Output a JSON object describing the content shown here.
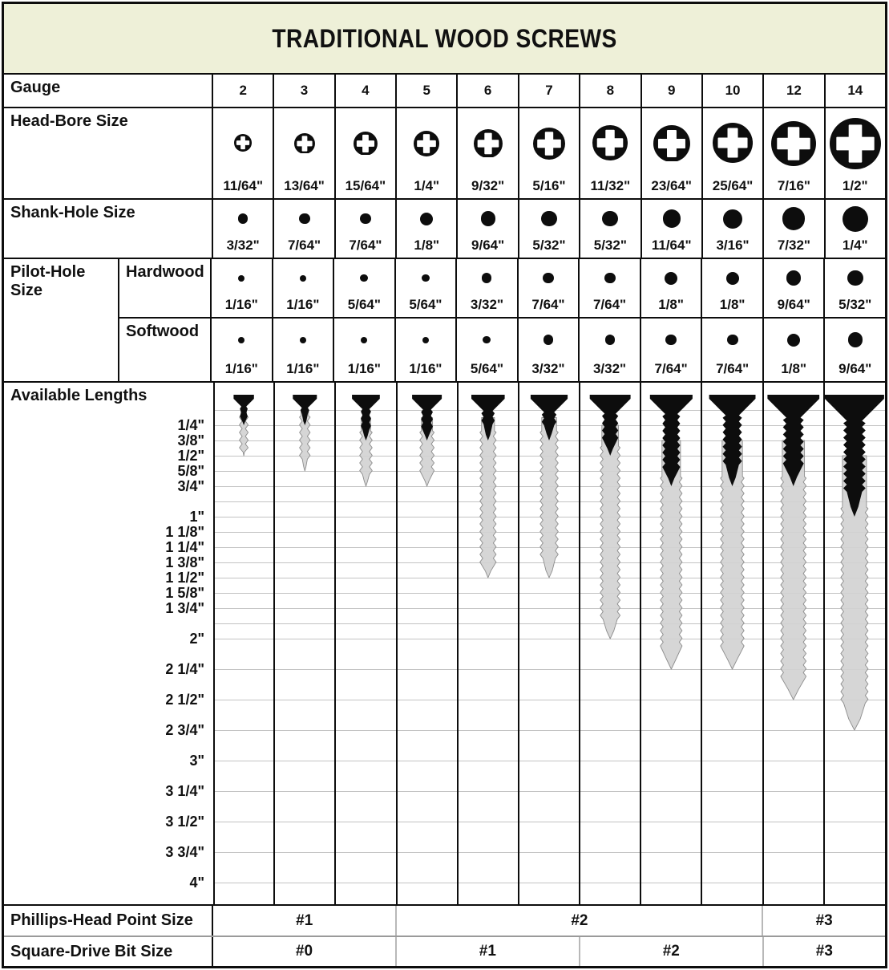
{
  "title": "TRADITIONAL WOOD SCREWS",
  "rows": {
    "gauge_label": "Gauge",
    "head_bore_label": "Head-Bore Size",
    "shank_label": "Shank-Hole Size",
    "pilot_label_line1": "Pilot-Hole",
    "pilot_label_line2": "Size",
    "hardwood_label": "Hardwood",
    "softwood_label": "Softwood",
    "lengths_label": "Available Lengths",
    "phillips_label": "Phillips-Head Point Size",
    "square_label": "Square-Drive Bit Size"
  },
  "gauges": [
    {
      "gauge": "2",
      "head_bore": {
        "label": "11/64\"",
        "in": 0.172
      },
      "shank": {
        "label": "3/32\"",
        "in": 0.094
      },
      "pilot_hardwood": {
        "label": "1/16\"",
        "in": 0.0625
      },
      "pilot_softwood": {
        "label": "1/16\"",
        "in": 0.0625
      },
      "lengths": {
        "min_label": "1/4\"",
        "min_in": 0.25,
        "max_label": "1/2\"",
        "max_in": 0.5
      }
    },
    {
      "gauge": "3",
      "head_bore": {
        "label": "13/64\"",
        "in": 0.203
      },
      "shank": {
        "label": "7/64\"",
        "in": 0.109
      },
      "pilot_hardwood": {
        "label": "1/16\"",
        "in": 0.0625
      },
      "pilot_softwood": {
        "label": "1/16\"",
        "in": 0.0625
      },
      "lengths": {
        "min_label": "1/4\"",
        "min_in": 0.25,
        "max_label": "5/8\"",
        "max_in": 0.625
      }
    },
    {
      "gauge": "4",
      "head_bore": {
        "label": "15/64\"",
        "in": 0.234
      },
      "shank": {
        "label": "7/64\"",
        "in": 0.109
      },
      "pilot_hardwood": {
        "label": "5/64\"",
        "in": 0.078
      },
      "pilot_softwood": {
        "label": "1/16\"",
        "in": 0.0625
      },
      "lengths": {
        "min_label": "3/8\"",
        "min_in": 0.375,
        "max_label": "3/4\"",
        "max_in": 0.75
      }
    },
    {
      "gauge": "5",
      "head_bore": {
        "label": "1/4\"",
        "in": 0.25
      },
      "shank": {
        "label": "1/8\"",
        "in": 0.125
      },
      "pilot_hardwood": {
        "label": "5/64\"",
        "in": 0.078
      },
      "pilot_softwood": {
        "label": "1/16\"",
        "in": 0.0625
      },
      "lengths": {
        "min_label": "3/8\"",
        "min_in": 0.375,
        "max_label": "3/4\"",
        "max_in": 0.75
      }
    },
    {
      "gauge": "6",
      "head_bore": {
        "label": "9/32\"",
        "in": 0.281
      },
      "shank": {
        "label": "9/64\"",
        "in": 0.141
      },
      "pilot_hardwood": {
        "label": "3/32\"",
        "in": 0.094
      },
      "pilot_softwood": {
        "label": "5/64\"",
        "in": 0.078
      },
      "lengths": {
        "min_label": "3/8\"",
        "min_in": 0.375,
        "max_label": "1 1/2\"",
        "max_in": 1.5
      }
    },
    {
      "gauge": "7",
      "head_bore": {
        "label": "5/16\"",
        "in": 0.3125
      },
      "shank": {
        "label": "5/32\"",
        "in": 0.156
      },
      "pilot_hardwood": {
        "label": "7/64\"",
        "in": 0.109
      },
      "pilot_softwood": {
        "label": "3/32\"",
        "in": 0.094
      },
      "lengths": {
        "min_label": "3/8\"",
        "min_in": 0.375,
        "max_label": "1 1/2\"",
        "max_in": 1.5
      }
    },
    {
      "gauge": "8",
      "head_bore": {
        "label": "11/32\"",
        "in": 0.344
      },
      "shank": {
        "label": "5/32\"",
        "in": 0.156
      },
      "pilot_hardwood": {
        "label": "7/64\"",
        "in": 0.109
      },
      "pilot_softwood": {
        "label": "3/32\"",
        "in": 0.094
      },
      "lengths": {
        "min_label": "1/2\"",
        "min_in": 0.5,
        "max_label": "2\"",
        "max_in": 2.0
      }
    },
    {
      "gauge": "9",
      "head_bore": {
        "label": "23/64\"",
        "in": 0.359
      },
      "shank": {
        "label": "11/64\"",
        "in": 0.172
      },
      "pilot_hardwood": {
        "label": "1/8\"",
        "in": 0.125
      },
      "pilot_softwood": {
        "label": "7/64\"",
        "in": 0.109
      },
      "lengths": {
        "min_label": "3/4\"",
        "min_in": 0.75,
        "max_label": "2 1/4\"",
        "max_in": 2.25
      }
    },
    {
      "gauge": "10",
      "head_bore": {
        "label": "25/64\"",
        "in": 0.391
      },
      "shank": {
        "label": "3/16\"",
        "in": 0.1875
      },
      "pilot_hardwood": {
        "label": "1/8\"",
        "in": 0.125
      },
      "pilot_softwood": {
        "label": "7/64\"",
        "in": 0.109
      },
      "lengths": {
        "min_label": "3/4\"",
        "min_in": 0.75,
        "max_label": "2 1/4\"",
        "max_in": 2.25
      }
    },
    {
      "gauge": "12",
      "head_bore": {
        "label": "7/16\"",
        "in": 0.4375
      },
      "shank": {
        "label": "7/32\"",
        "in": 0.219
      },
      "pilot_hardwood": {
        "label": "9/64\"",
        "in": 0.141
      },
      "pilot_softwood": {
        "label": "1/8\"",
        "in": 0.125
      },
      "lengths": {
        "min_label": "3/4\"",
        "min_in": 0.75,
        "max_label": "2 1/2\"",
        "max_in": 2.5
      }
    },
    {
      "gauge": "14",
      "head_bore": {
        "label": "1/2\"",
        "in": 0.5
      },
      "shank": {
        "label": "1/4\"",
        "in": 0.25
      },
      "pilot_hardwood": {
        "label": "5/32\"",
        "in": 0.156
      },
      "pilot_softwood": {
        "label": "9/64\"",
        "in": 0.141
      },
      "lengths": {
        "min_label": "1\"",
        "min_in": 1.0,
        "max_label": "2 3/4\"",
        "max_in": 2.75
      }
    }
  ],
  "length_axis": {
    "ticks": [
      {
        "label": "1/4\"",
        "in": 0.25
      },
      {
        "label": "3/8\"",
        "in": 0.375
      },
      {
        "label": "1/2\"",
        "in": 0.5
      },
      {
        "label": "5/8\"",
        "in": 0.625
      },
      {
        "label": "3/4\"",
        "in": 0.75
      },
      {
        "label": "1\"",
        "in": 1.0
      },
      {
        "label": "1 1/8\"",
        "in": 1.125
      },
      {
        "label": "1 1/4\"",
        "in": 1.25
      },
      {
        "label": "1 3/8\"",
        "in": 1.375
      },
      {
        "label": "1 1/2\"",
        "in": 1.5
      },
      {
        "label": "1 5/8\"",
        "in": 1.625
      },
      {
        "label": "1 3/4\"",
        "in": 1.75
      },
      {
        "label": "2\"",
        "in": 2.0
      },
      {
        "label": "2 1/4\"",
        "in": 2.25
      },
      {
        "label": "2 1/2\"",
        "in": 2.5
      },
      {
        "label": "2 3/4\"",
        "in": 2.75
      },
      {
        "label": "3\"",
        "in": 3.0
      },
      {
        "label": "3 1/4\"",
        "in": 3.25
      },
      {
        "label": "3 1/2\"",
        "in": 3.5
      },
      {
        "label": "3 3/4\"",
        "in": 3.75
      },
      {
        "label": "4\"",
        "in": 4.0
      }
    ],
    "gridlines": [
      0.125,
      0.25,
      0.375,
      0.5,
      0.625,
      0.75,
      0.875,
      1.0,
      1.125,
      1.25,
      1.375,
      1.5,
      1.625,
      1.75,
      1.875,
      2.0,
      2.25,
      2.5,
      2.75,
      3.0,
      3.25,
      3.5,
      3.75,
      4.0
    ]
  },
  "phillips_spans": [
    {
      "label": "#1",
      "cols": 3
    },
    {
      "label": "#2",
      "cols": 6
    },
    {
      "label": "#3",
      "cols": 2
    }
  ],
  "square_spans": [
    {
      "label": "#0",
      "cols": 3
    },
    {
      "label": "#1",
      "cols": 3
    },
    {
      "label": "#2",
      "cols": 3
    },
    {
      "label": "#3",
      "cols": 2
    }
  ],
  "colors": {
    "header_bg": "#eef0d8",
    "border": "#0d0d0d",
    "gridline": "#c3c3c3",
    "screw_black": "#0d0d0d",
    "screw_gray": "#d3d3d3",
    "screw_gray_stroke": "#8d8d8d",
    "span_divider": "#b8b8b8"
  },
  "chart_data": {
    "type": "table",
    "title": "TRADITIONAL WOOD SCREWS",
    "columns": [
      "2",
      "3",
      "4",
      "5",
      "6",
      "7",
      "8",
      "9",
      "10",
      "12",
      "14"
    ],
    "rows": [
      {
        "label": "Head-Bore Size",
        "values": [
          "11/64\"",
          "13/64\"",
          "15/64\"",
          "1/4\"",
          "9/32\"",
          "5/16\"",
          "11/32\"",
          "23/64\"",
          "25/64\"",
          "7/16\"",
          "1/2\""
        ]
      },
      {
        "label": "Shank-Hole Size",
        "values": [
          "3/32\"",
          "7/64\"",
          "7/64\"",
          "1/8\"",
          "9/64\"",
          "5/32\"",
          "5/32\"",
          "11/64\"",
          "3/16\"",
          "7/32\"",
          "1/4\""
        ]
      },
      {
        "label": "Pilot-Hole Size (Hardwood)",
        "values": [
          "1/16\"",
          "1/16\"",
          "5/64\"",
          "5/64\"",
          "3/32\"",
          "7/64\"",
          "7/64\"",
          "1/8\"",
          "1/8\"",
          "9/64\"",
          "5/32\""
        ]
      },
      {
        "label": "Pilot-Hole Size (Softwood)",
        "values": [
          "1/16\"",
          "1/16\"",
          "1/16\"",
          "1/16\"",
          "5/64\"",
          "3/32\"",
          "3/32\"",
          "7/64\"",
          "7/64\"",
          "1/8\"",
          "9/64\""
        ]
      },
      {
        "label": "Available Lengths",
        "values": [
          "1/4\"-1/2\"",
          "1/4\"-5/8\"",
          "3/8\"-3/4\"",
          "3/8\"-3/4\"",
          "3/8\"-1 1/2\"",
          "3/8\"-1 1/2\"",
          "1/2\"-2\"",
          "3/4\"-2 1/4\"",
          "3/4\"-2 1/4\"",
          "3/4\"-2 1/2\"",
          "1\"-2 3/4\""
        ]
      },
      {
        "label": "Phillips-Head Point Size",
        "values": [
          "#1",
          "#1",
          "#1",
          "#2",
          "#2",
          "#2",
          "#2",
          "#2",
          "#2",
          "#3",
          "#3"
        ]
      },
      {
        "label": "Square-Drive Bit Size",
        "values": [
          "#0",
          "#0",
          "#0",
          "#1",
          "#1",
          "#1",
          "#2",
          "#2",
          "#2",
          "#3",
          "#3"
        ]
      }
    ]
  }
}
